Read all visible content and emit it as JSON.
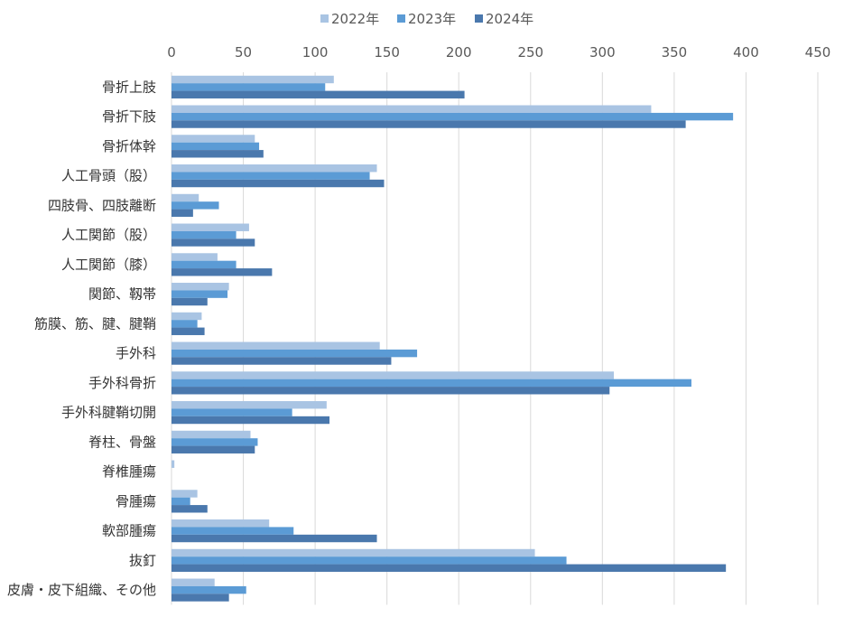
{
  "chart_data": {
    "type": "bar",
    "orientation": "horizontal",
    "categories": [
      "骨折上肢",
      "骨折下肢",
      "骨折体幹",
      "人工骨頭（股）",
      "四肢骨、四肢離断",
      "人工関節（股）",
      "人工関節（膝）",
      "関節、靱帯",
      "筋膜、筋、腱、腱鞘",
      "手外科",
      "手外科骨折",
      "手外科腱鞘切開",
      "脊柱、骨盤",
      "脊椎腫瘍",
      "骨腫瘍",
      "軟部腫瘍",
      "抜釘",
      "皮膚・皮下組織、その他"
    ],
    "series": [
      {
        "name": "2022年",
        "color": "#a9c4e3",
        "values": [
          113,
          334,
          58,
          143,
          19,
          54,
          32,
          40,
          21,
          145,
          308,
          108,
          55,
          2,
          18,
          68,
          253,
          30
        ]
      },
      {
        "name": "2023年",
        "color": "#5b9bd5",
        "values": [
          107,
          391,
          61,
          138,
          33,
          45,
          45,
          39,
          18,
          171,
          362,
          84,
          60,
          0,
          13,
          85,
          275,
          52
        ]
      },
      {
        "name": "2024年",
        "color": "#4a78ad",
        "values": [
          204,
          358,
          64,
          148,
          15,
          58,
          70,
          25,
          23,
          153,
          305,
          110,
          58,
          0,
          25,
          143,
          386,
          40
        ]
      }
    ],
    "xlim": [
      0,
      450
    ],
    "xticks": [
      0,
      50,
      100,
      150,
      200,
      250,
      300,
      350,
      400,
      450
    ],
    "grid": true,
    "legend_position": "top-center",
    "title": "",
    "xlabel": "",
    "ylabel": ""
  }
}
